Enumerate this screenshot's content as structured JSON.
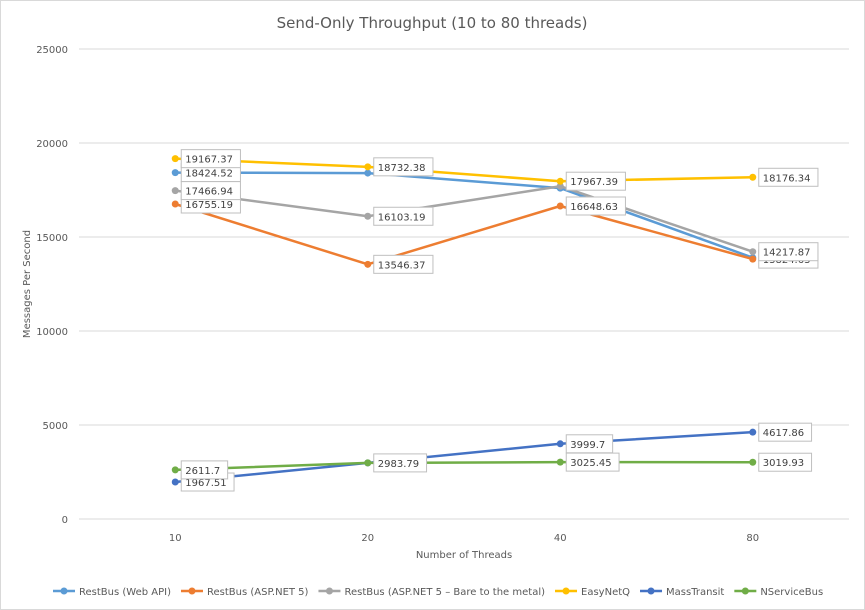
{
  "chart_data": {
    "type": "line",
    "title": "Send-Only Throughput (10 to 80 threads)",
    "xlabel": "Number  of Threads",
    "ylabel": "Messages Per Second",
    "categories": [
      "10",
      "20",
      "40",
      "80"
    ],
    "ylim": [
      0,
      25000
    ],
    "yticks": [
      0,
      5000,
      10000,
      15000,
      20000,
      25000
    ],
    "grid": true,
    "legend_position": "bottom",
    "series": [
      {
        "name": "RestBus (Web API)",
        "color": "#5b9bd5",
        "values": [
          18424.52,
          18400,
          17600,
          13900
        ],
        "labels": [
          "18424.52",
          "",
          "",
          ""
        ]
      },
      {
        "name": "RestBus (ASP.NET 5)",
        "color": "#ed7d31",
        "values": [
          16755.19,
          13546.37,
          16648.63,
          13824.63
        ],
        "labels": [
          "16755.19",
          "13546.37",
          "16648.63",
          "13824.63"
        ]
      },
      {
        "name": "RestBus (ASP.NET 5 – Bare to the metal)",
        "color": "#a5a5a5",
        "values": [
          17466.94,
          16103.19,
          17700,
          14217.87
        ],
        "labels": [
          "17466.94",
          "16103.19",
          "",
          "14217.87"
        ]
      },
      {
        "name": "EasyNetQ",
        "color": "#ffc000",
        "values": [
          19167.37,
          18732.38,
          17967.39,
          18176.34
        ],
        "labels": [
          "19167.37",
          "18732.38",
          "17967.39",
          "18176.34"
        ]
      },
      {
        "name": "MassTransit",
        "color": "#4472c4",
        "values": [
          1967.51,
          2983.79,
          3999.7,
          4617.86
        ],
        "labels": [
          "1967.51",
          "",
          "3999.7",
          "4617.86"
        ]
      },
      {
        "name": "NServiceBus",
        "color": "#70ad47",
        "values": [
          2611.7,
          2983.79,
          3025.45,
          3019.93
        ],
        "labels": [
          "2611.7",
          "2983.79",
          "3025.45",
          "3019.93"
        ]
      }
    ]
  }
}
